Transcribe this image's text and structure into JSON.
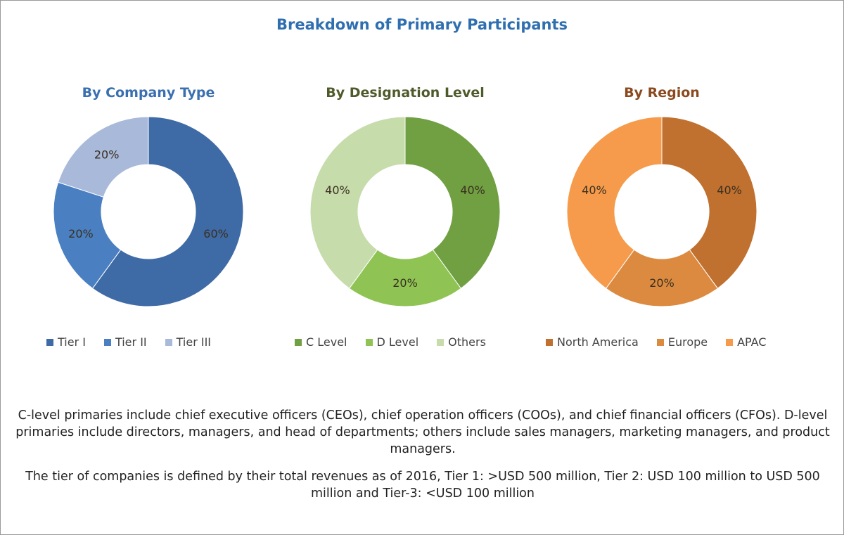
{
  "title": "Breakdown of Primary Participants",
  "chart_data": [
    {
      "type": "pie",
      "donut": true,
      "title": "By Company Type",
      "title_color": "#3a70b0",
      "categories": [
        "Tier I",
        "Tier II",
        "Tier III"
      ],
      "values": [
        60,
        20,
        20
      ],
      "labels": [
        "60%",
        "20%",
        "20%"
      ],
      "colors": [
        "#3e6aa6",
        "#4a80c2",
        "#a9b9d9"
      ],
      "legend": "bottom"
    },
    {
      "type": "pie",
      "donut": true,
      "title": "By Designation Level",
      "title_color": "#4f5a2a",
      "categories": [
        "C Level",
        "D Level",
        "Others"
      ],
      "values": [
        40,
        20,
        40
      ],
      "labels": [
        "40%",
        "20%",
        "40%"
      ],
      "colors": [
        "#70a042",
        "#8fc455",
        "#c6dcab"
      ],
      "legend": "bottom"
    },
    {
      "type": "pie",
      "donut": true,
      "title": "By Region",
      "title_color": "#8a4a1e",
      "categories": [
        "North America",
        "Europe",
        "APAC"
      ],
      "values": [
        40,
        20,
        40
      ],
      "labels": [
        "40%",
        "20%",
        "40%"
      ],
      "colors": [
        "#c0702f",
        "#dc8a40",
        "#f59b4b"
      ],
      "legend": "bottom"
    }
  ],
  "notes": [
    "C-level primaries include chief executive officers (CEOs), chief operation officers (COOs), and chief financial officers (CFOs). D-level primaries include directors, managers, and head of departments; others include sales managers, marketing managers, and product managers.",
    "The tier of companies is defined by their total revenues as of 2016, Tier 1: >USD 500 million, Tier 2: USD 100 million to USD 500 million and Tier-3: <USD 100 million"
  ]
}
